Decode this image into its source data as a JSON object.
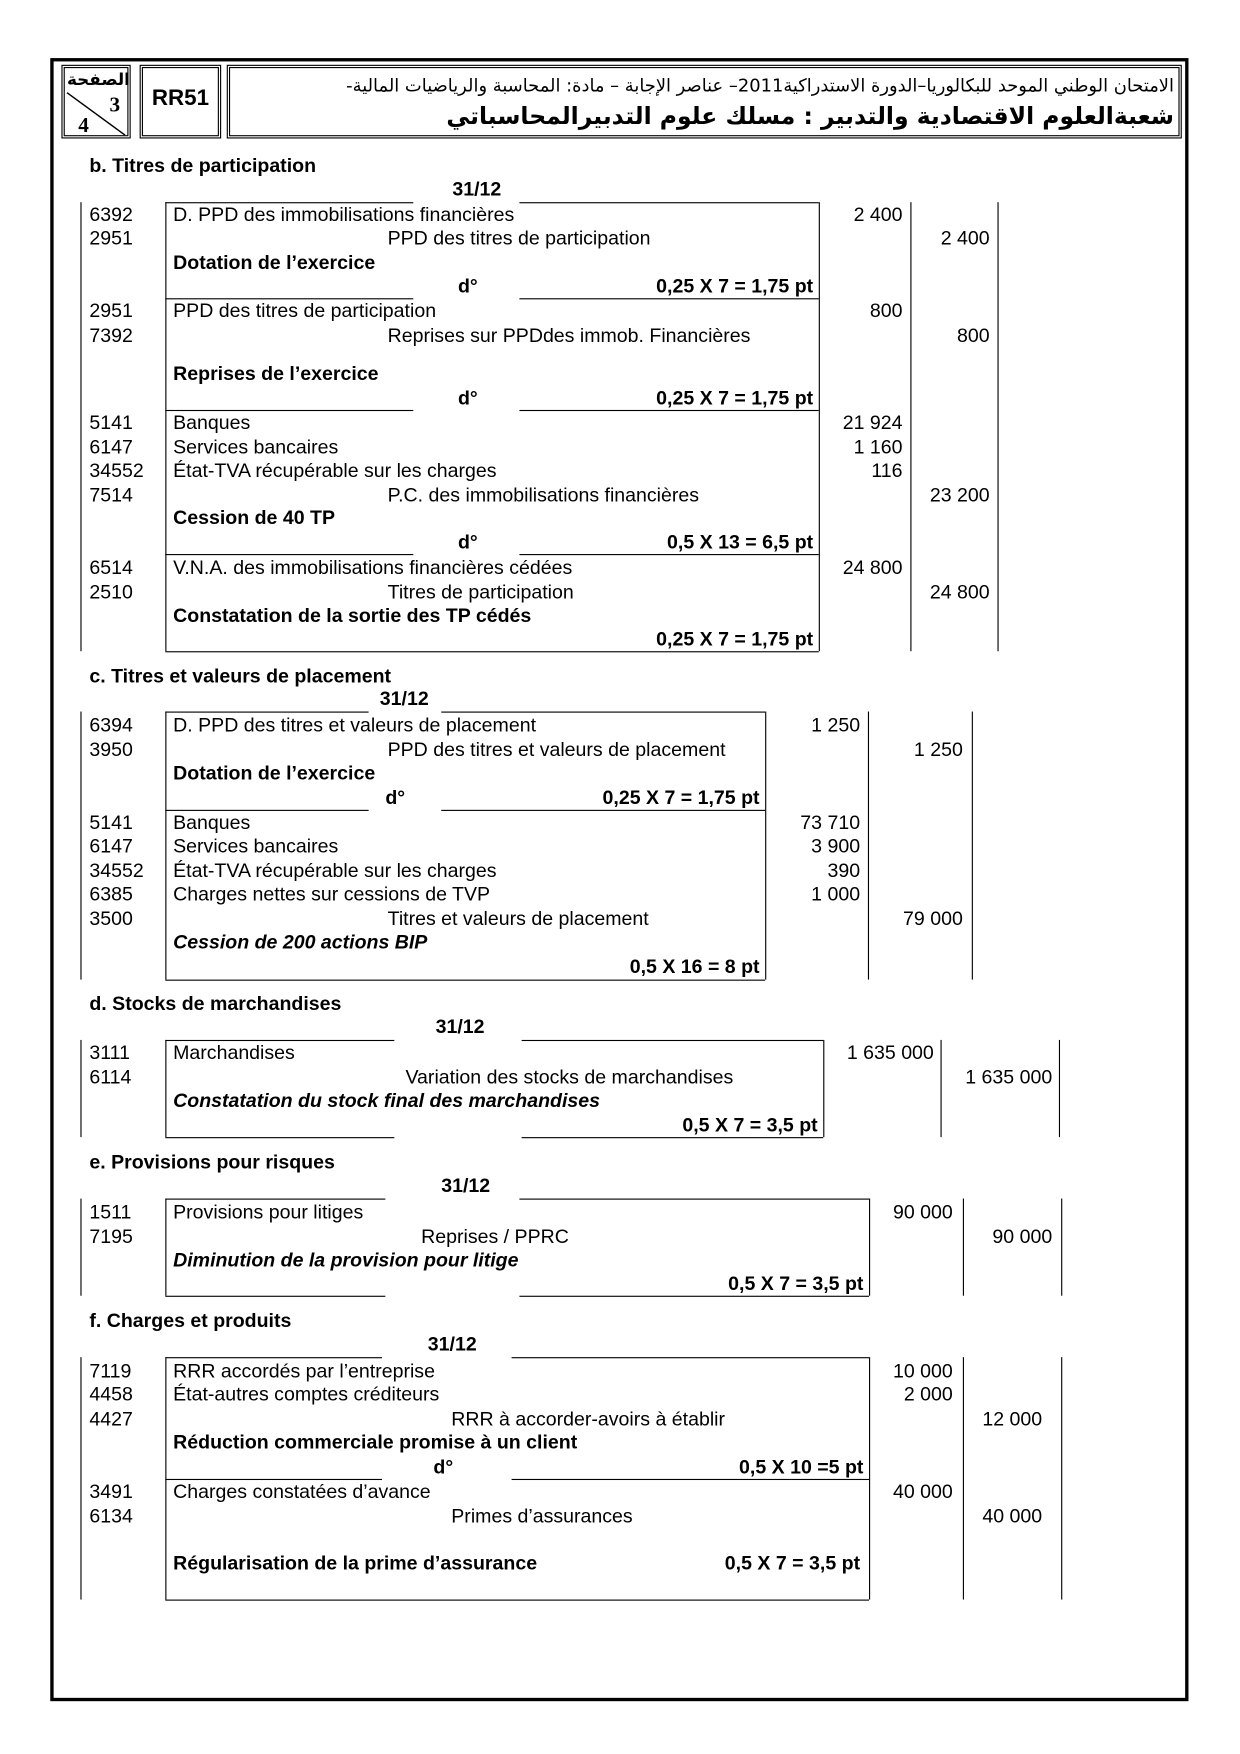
{
  "header": {
    "page_label": "الصفحة",
    "page_current": "3",
    "page_total": "4",
    "code": "RR51",
    "line1": "الامتحان الوطني الموحد للبكالوريا–الدورة الاستدراكية2011– عناصر الإجابة – مادة: المحاسبة والرياضيات المالية-",
    "line2": "شعبةالعلوم الاقتصادية والتدبير : مسلك علوم التدبيرالمحاسباتي"
  },
  "sections": [
    {
      "title": "b. Titres de participation",
      "date": "31/12",
      "rows": [
        {
          "kind": "entry",
          "account": "6392",
          "label": "D. PPD des immobilisations financières",
          "debit": "2 400"
        },
        {
          "kind": "entry",
          "account": "2951",
          "label": "PPD des titres de participation",
          "indent": true,
          "credit": "2 400"
        },
        {
          "kind": "caption",
          "label": "Dotation de l’exercice"
        },
        {
          "kind": "sep",
          "ditto": "d°",
          "points": "0,25 X 7 = 1,75 pt"
        },
        {
          "kind": "entry",
          "account": "2951",
          "label": "PPD des titres de participation",
          "debit": "800"
        },
        {
          "kind": "entry",
          "account": "7392",
          "label": "Reprises sur PPDdes immob. Financières",
          "indent": true,
          "credit": "800"
        },
        {
          "kind": "caption",
          "label": "Reprises de l’exercice"
        },
        {
          "kind": "sep",
          "ditto": "d°",
          "points": "0,25 X 7 = 1,75 pt"
        },
        {
          "kind": "entry",
          "account": "5141",
          "label": "Banques",
          "debit": "21 924"
        },
        {
          "kind": "entry",
          "account": "6147",
          "label": "Services bancaires",
          "debit": "1 160"
        },
        {
          "kind": "entry",
          "account": "34552",
          "label": "État-TVA récupérable sur les charges",
          "debit": "116"
        },
        {
          "kind": "entry",
          "account": "7514",
          "label": "P.C. des immobilisations financières",
          "indent": true,
          "credit": "23 200"
        },
        {
          "kind": "caption",
          "label": "Cession de 40 TP"
        },
        {
          "kind": "sep",
          "ditto": "d°",
          "points": "0,5 X 13 = 6,5 pt"
        },
        {
          "kind": "entry",
          "account": "6514",
          "label": "V.N.A. des immobilisations financières cédées",
          "debit": "24 800"
        },
        {
          "kind": "entry",
          "account": "2510",
          "label": "Titres de participation",
          "indent": true,
          "credit": "24 800"
        },
        {
          "kind": "caption",
          "label": "Constatation de la sortie des TP cédés"
        },
        {
          "kind": "end",
          "points": "0,25 X 7 = 1,75 pt"
        }
      ]
    },
    {
      "title": "c. Titres et valeurs de placement",
      "date": "31/12",
      "rows": [
        {
          "kind": "entry",
          "account": "6394",
          "label": "D. PPD des titres et valeurs de placement",
          "debit": "1 250"
        },
        {
          "kind": "entry",
          "account": "3950",
          "label": "PPD des titres et valeurs de placement",
          "indent": true,
          "credit": "1 250"
        },
        {
          "kind": "caption",
          "label": "Dotation de l’exercice"
        },
        {
          "kind": "sep",
          "ditto": "d°",
          "points": "0,25 X 7 = 1,75 pt"
        },
        {
          "kind": "entry",
          "account": "5141",
          "label": "Banques",
          "debit": "73 710"
        },
        {
          "kind": "entry",
          "account": "6147",
          "label": "Services bancaires",
          "debit": "3 900"
        },
        {
          "kind": "entry",
          "account": "34552",
          "label": "État-TVA récupérable sur les charges",
          "debit": "390"
        },
        {
          "kind": "entry",
          "account": "6385",
          "label": "Charges  nettes sur cessions de TVP",
          "debit": "1 000"
        },
        {
          "kind": "entry",
          "account": "3500",
          "label": "Titres et valeurs de placement",
          "indent": true,
          "credit": "79 000"
        },
        {
          "kind": "caption",
          "label": "Cession de 200 actions BIP",
          "italic": true
        },
        {
          "kind": "end",
          "points": "0,5 X 16 = 8 pt"
        }
      ]
    },
    {
      "title": "d. Stocks de marchandises",
      "date": "31/12",
      "rows": [
        {
          "kind": "entry",
          "account": "3111",
          "label": "Marchandises",
          "debit": "1 635 000"
        },
        {
          "kind": "entry",
          "account": "6114",
          "label": "Variation des stocks de marchandises",
          "indent": true,
          "credit": "1 635 000"
        },
        {
          "kind": "caption",
          "label": "Constatation du stock final des marchandises",
          "italic": true
        },
        {
          "kind": "end",
          "points": "0,5 X 7 = 3,5 pt"
        }
      ]
    },
    {
      "title": "e. Provisions pour risques",
      "date": "31/12",
      "rows": [
        {
          "kind": "entry",
          "account": "1511",
          "label": "Provisions pour litiges",
          "debit": "90 000"
        },
        {
          "kind": "entry",
          "account": "7195",
          "label": "Reprises / PPRC",
          "indent": true,
          "credit": "90 000"
        },
        {
          "kind": "caption",
          "label": "Diminution de la provision pour litige",
          "italic": true
        },
        {
          "kind": "end",
          "points": "0,5 X 7 = 3,5 pt"
        }
      ]
    },
    {
      "title": "f. Charges et produits",
      "date": "31/12",
      "rows": [
        {
          "kind": "entry",
          "account": "7119",
          "label": "RRR accordés par l’entreprise",
          "debit": "10 000"
        },
        {
          "kind": "entry",
          "account": "4458",
          "label": "État-autres comptes créditeurs",
          "debit": "2 000"
        },
        {
          "kind": "entry",
          "account": "4427",
          "label": "RRR à accorder-avoirs à établir",
          "indent": true,
          "credit": "12 000"
        },
        {
          "kind": "caption",
          "label": "Réduction commerciale promise à un client"
        },
        {
          "kind": "sep",
          "ditto": "d°",
          "points": "0,5 X 10 =5 pt"
        },
        {
          "kind": "entry",
          "account": "3491",
          "label": "Charges constatées d’avance",
          "debit": "40 000"
        },
        {
          "kind": "entry",
          "account": "6134",
          "label": "Primes d’assurances",
          "indent": true,
          "credit": "40 000"
        },
        {
          "kind": "caption",
          "label": "Régularisation de la prime d’assurance",
          "points": "0,5 X 7 = 3,5 pt"
        },
        {
          "kind": "end"
        }
      ]
    }
  ]
}
